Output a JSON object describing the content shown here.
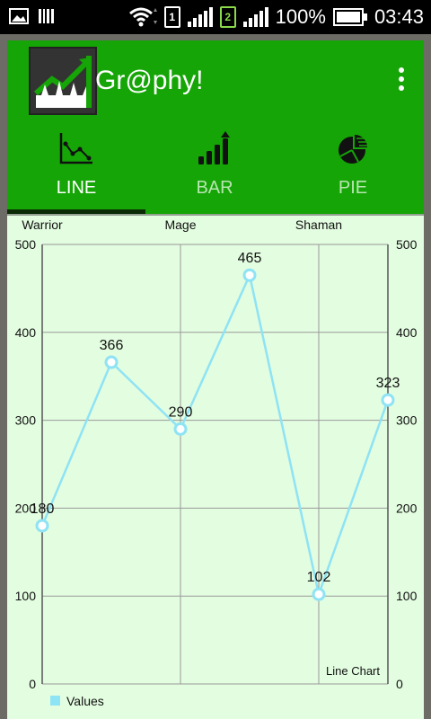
{
  "app": {
    "title": "Gr@phy!"
  },
  "status_bar": {
    "battery": "100%",
    "time": "03:43",
    "sim1": "1",
    "sim2": "2"
  },
  "tabs": [
    {
      "label": "LINE",
      "active": true,
      "icon": "line-chart-icon"
    },
    {
      "label": "BAR",
      "active": false,
      "icon": "bar-chart-icon"
    },
    {
      "label": "PIE",
      "active": false,
      "icon": "pie-chart-icon"
    }
  ],
  "colors": {
    "accent": "#15a507",
    "chart_bg": "#e3fde0",
    "line": "#8ee3f5"
  },
  "chart_data": {
    "type": "line",
    "x_top_labels": [
      "Warrior",
      "Mage",
      "Shaman"
    ],
    "series": [
      {
        "name": "Values",
        "values": [
          180,
          366,
          290,
          465,
          102,
          323
        ]
      }
    ],
    "ylim": [
      0,
      500
    ],
    "yticks": [
      0,
      100,
      200,
      300,
      400,
      500
    ],
    "description": "Line Chart",
    "legend": "bottom-left",
    "grid": true
  }
}
